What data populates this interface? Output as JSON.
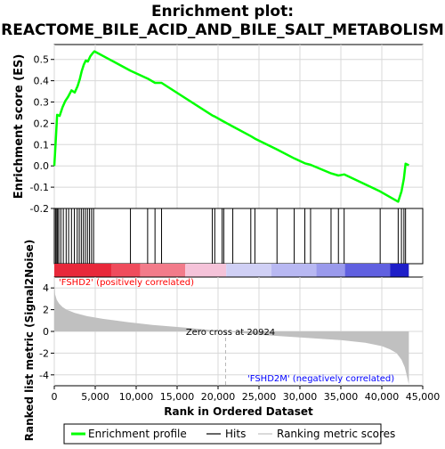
{
  "chart_data": {
    "type": "line",
    "title": "Enrichment plot:\nREACTOME_BILE_ACID_AND_BILE_SALT_METABOLISM",
    "title_lines": [
      "Enrichment plot:",
      "REACTOME_BILE_ACID_AND_BILE_SALT_METABOLISM"
    ],
    "xlabel": "Rank in Ordered Dataset",
    "xlim": [
      0,
      45000
    ],
    "x_ticks": [
      0,
      5000,
      10000,
      15000,
      20000,
      25000,
      30000,
      35000,
      40000,
      45000
    ],
    "x_tick_labels": [
      "0",
      "5,000",
      "10,000",
      "15,000",
      "20,000",
      "25,000",
      "30,000",
      "35,000",
      "40,000",
      "45,000"
    ],
    "grid": true,
    "legend_placement": "bottom",
    "colors": {
      "enrichment_line": "#00ff00",
      "hits": "#000000",
      "metric_fill": "#c0c0c0",
      "positive_label": "#ff0000",
      "negative_label": "#0000ff",
      "grid": "#d8d8d8",
      "zero_cross_line": "#b8b8b8"
    },
    "es_panel": {
      "ylabel": "Enrichment score (ES)",
      "ylim": [
        -0.2,
        0.57
      ],
      "y_ticks": [
        -0.2,
        -0.1,
        0.0,
        0.1,
        0.2,
        0.3,
        0.4,
        0.5
      ],
      "y_tick_labels": [
        "-0.2",
        "-0.1",
        "0.0",
        "0.1",
        "0.2",
        "0.3",
        "0.4",
        "0.5"
      ],
      "series": [
        {
          "name": "Enrichment profile",
          "x": [
            0,
            150,
            350,
            650,
            1000,
            1350,
            1700,
            2100,
            2500,
            2850,
            3100,
            3350,
            3600,
            3850,
            4100,
            4400,
            4700,
            4900,
            9300,
            11400,
            12300,
            13100,
            19300,
            19600,
            20500,
            21800,
            24000,
            24500,
            27200,
            29300,
            30600,
            31300,
            33800,
            34700,
            35400,
            39800,
            42000,
            42400,
            42700,
            42900,
            43300
          ],
          "y": [
            0.0,
            0.1,
            0.24,
            0.235,
            0.275,
            0.305,
            0.325,
            0.355,
            0.345,
            0.375,
            0.405,
            0.445,
            0.475,
            0.495,
            0.49,
            0.515,
            0.53,
            0.538,
            0.447,
            0.41,
            0.39,
            0.39,
            0.237,
            0.232,
            0.212,
            0.185,
            0.14,
            0.128,
            0.077,
            0.035,
            0.012,
            0.005,
            -0.035,
            -0.045,
            -0.04,
            -0.12,
            -0.168,
            -0.12,
            -0.06,
            0.01,
            0.003
          ]
        }
      ]
    },
    "hits_panel": {
      "name": "Hits",
      "hit_positions": [
        150,
        300,
        400,
        550,
        800,
        1100,
        1450,
        1750,
        2100,
        2450,
        2800,
        3050,
        3300,
        3550,
        3800,
        4050,
        4300,
        4550,
        4800,
        9300,
        11400,
        12300,
        13100,
        19300,
        19600,
        20500,
        20700,
        21800,
        24000,
        24500,
        27200,
        29300,
        30600,
        31300,
        33800,
        34700,
        35400,
        39800,
        42000,
        42400,
        42700,
        42900
      ]
    },
    "color_bar": {
      "segments": [
        {
          "x0": 0,
          "x1": 7000,
          "color": "#e8283a"
        },
        {
          "x0": 7000,
          "x1": 10500,
          "color": "#ef4c5c"
        },
        {
          "x0": 10500,
          "x1": 16000,
          "color": "#f27b8a"
        },
        {
          "x0": 16000,
          "x1": 21000,
          "color": "#f5c3d9"
        },
        {
          "x0": 21000,
          "x1": 26500,
          "color": "#d0d0f5"
        },
        {
          "x0": 26500,
          "x1": 32000,
          "color": "#b8b8f2"
        },
        {
          "x0": 32000,
          "x1": 35500,
          "color": "#9a9aec"
        },
        {
          "x0": 35500,
          "x1": 41000,
          "color": "#6060e0"
        },
        {
          "x0": 41000,
          "x1": 43300,
          "color": "#1e1ec8"
        }
      ]
    },
    "metric_panel": {
      "name": "Ranking metric scores",
      "ylabel": "Ranked list metric (Signal2Noise)",
      "ylim": [
        -5,
        5
      ],
      "y_ticks": [
        -4,
        -2,
        0,
        2,
        4
      ],
      "y_tick_labels": [
        "-4",
        "-2",
        "0",
        "2",
        "4"
      ],
      "x": [
        0,
        100,
        300,
        600,
        1000,
        1500,
        2500,
        4000,
        6000,
        9000,
        12000,
        16000,
        20924,
        25000,
        30000,
        35000,
        38000,
        40000,
        41000,
        41800,
        42400,
        42800,
        43100,
        43300
      ],
      "y": [
        4.9,
        3.4,
        2.9,
        2.55,
        2.25,
        2.0,
        1.7,
        1.4,
        1.15,
        0.85,
        0.6,
        0.35,
        0.0,
        -0.3,
        -0.55,
        -0.8,
        -1.05,
        -1.35,
        -1.65,
        -2.0,
        -2.6,
        -3.3,
        -4.2,
        -4.9
      ],
      "zero_cross_x": 20924,
      "zero_cross_label": "Zero cross at 20924",
      "positive_label": "'FSHD2' (positively correlated)",
      "negative_label": "'FSHD2M' (negatively correlated)"
    },
    "legend": [
      "Enrichment profile",
      "Hits",
      "Ranking metric scores"
    ]
  }
}
